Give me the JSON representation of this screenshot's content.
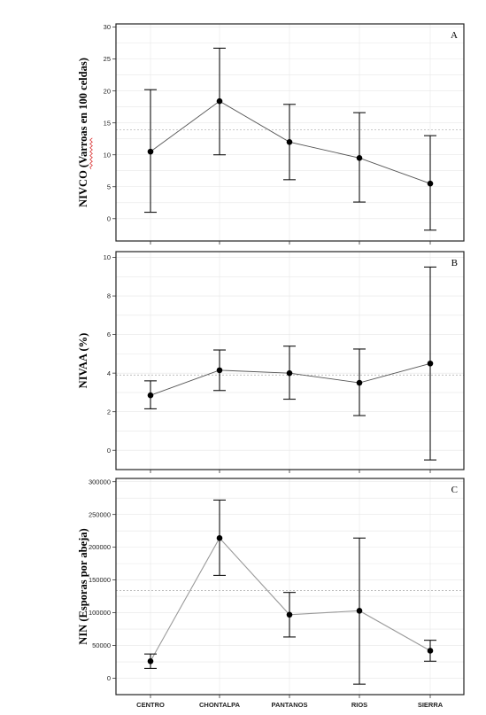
{
  "chart_data": [
    {
      "type": "scatter",
      "panel": "A",
      "ylabel": "NIVCO (Varroas en 100 celdas)",
      "categories": [
        "CENTRO",
        "CHONTALPA",
        "PANTANOS",
        "RIOS",
        "SIERRA"
      ],
      "ylim": [
        -3.5,
        30.5
      ],
      "yticks": [
        0,
        5,
        10,
        15,
        20,
        25,
        30
      ],
      "ytick_labels": [
        "0",
        "5",
        "10",
        "15",
        "20",
        "25",
        "30"
      ],
      "reference_line": 13.9,
      "series": [
        {
          "values": [
            10.5,
            18.4,
            12.0,
            9.5,
            5.5
          ],
          "lower": [
            1.0,
            10.0,
            6.1,
            2.6,
            -1.8
          ],
          "upper": [
            20.2,
            26.7,
            17.9,
            16.6,
            13.0
          ]
        }
      ],
      "grid": true
    },
    {
      "type": "scatter",
      "panel": "B",
      "ylabel": "NIVAA (%)",
      "categories": [
        "CENTRO",
        "CHONTALPA",
        "PANTANOS",
        "RIOS",
        "SIERRA"
      ],
      "ylim": [
        -1.0,
        10.3
      ],
      "yticks": [
        0,
        2,
        4,
        6,
        8,
        10
      ],
      "ytick_labels": [
        "0",
        "2",
        "4",
        "6",
        "8",
        "10"
      ],
      "reference_line": 3.9,
      "series": [
        {
          "values": [
            2.85,
            4.15,
            4.0,
            3.5,
            4.5
          ],
          "lower": [
            2.15,
            3.1,
            2.65,
            1.8,
            -0.5
          ],
          "upper": [
            3.6,
            5.2,
            5.4,
            5.25,
            9.5
          ]
        }
      ],
      "grid": true
    },
    {
      "type": "scatter",
      "panel": "C",
      "ylabel": "NIN (Esporas por abeja)",
      "categories": [
        "CENTRO",
        "CHONTALPA",
        "PANTANOS",
        "RIOS",
        "SIERRA"
      ],
      "ylim": [
        -25000,
        305000
      ],
      "yticks": [
        0,
        50000,
        100000,
        150000,
        200000,
        250000,
        300000
      ],
      "ytick_labels": [
        "0",
        "50000",
        "100000",
        "150000",
        "200000",
        "250000",
        "300000"
      ],
      "reference_line": 134000,
      "series": [
        {
          "values": [
            26000,
            214000,
            97000,
            103000,
            42000
          ],
          "lower": [
            15000,
            157000,
            63000,
            -9000,
            26000
          ],
          "upper": [
            37000,
            272000,
            131000,
            214000,
            58000
          ]
        }
      ],
      "grid": true
    }
  ]
}
